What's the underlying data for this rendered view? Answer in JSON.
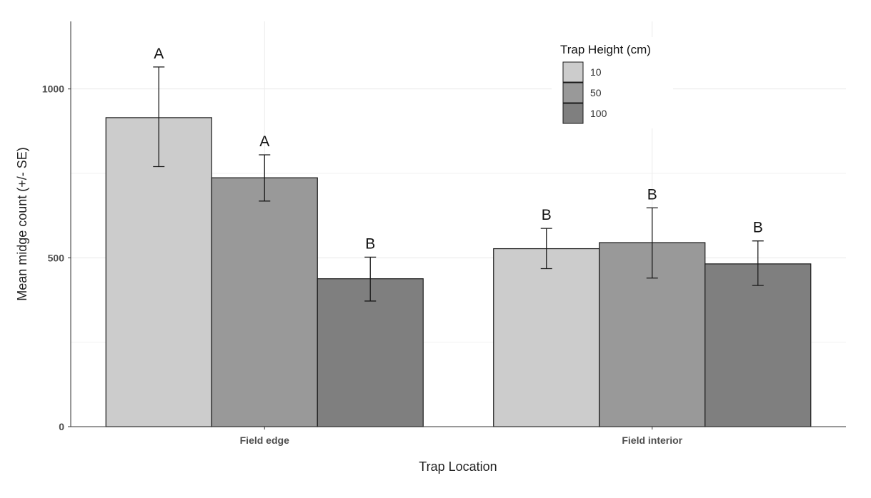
{
  "chart_data": {
    "type": "bar",
    "xlabel": "Trap Location",
    "ylabel": "Mean midge count (+/- SE)",
    "categories": [
      "Field edge",
      "Field interior"
    ],
    "legend_title": "Trap Height (cm)",
    "legend_position": "top-right",
    "grid": true,
    "ylim": [
      0,
      1200
    ],
    "yticks": [
      0,
      500,
      1000
    ],
    "series": [
      {
        "name": "10",
        "color": "#cccccc",
        "values": [
          915,
          527
        ],
        "se_low": [
          770,
          468
        ],
        "se_high": [
          1065,
          587
        ],
        "labels": [
          "A",
          "B"
        ]
      },
      {
        "name": "50",
        "color": "#999999",
        "values": [
          737,
          545
        ],
        "se_low": [
          668,
          440
        ],
        "se_high": [
          805,
          648
        ],
        "labels": [
          "A",
          "B"
        ]
      },
      {
        "name": "100",
        "color": "#7f7f7f",
        "values": [
          438,
          482
        ],
        "se_low": [
          372,
          418
        ],
        "se_high": [
          502,
          550
        ],
        "labels": [
          "B",
          "B"
        ]
      }
    ]
  }
}
